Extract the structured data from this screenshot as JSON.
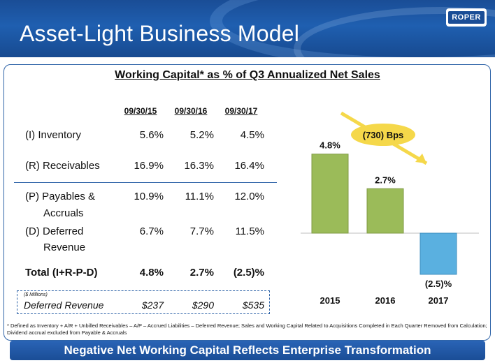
{
  "header": {
    "title": "Asset-Light Business Model",
    "logo_text": "ROPER"
  },
  "table": {
    "title": "Working Capital* as % of Q3 Annualized Net Sales",
    "columns": [
      "09/30/15",
      "09/30/16",
      "09/30/17"
    ],
    "rows": [
      {
        "label": [
          "(I)  Inventory"
        ],
        "values": [
          "5.6%",
          "5.2%",
          "4.5%"
        ]
      },
      {
        "label": [
          "(R) Receivables"
        ],
        "values": [
          "16.9%",
          "16.3%",
          "16.4%"
        ]
      },
      {
        "label": [
          "(P) Payables &",
          "Accruals"
        ],
        "values": [
          "10.9%",
          "11.1%",
          "12.0%"
        ]
      },
      {
        "label": [
          "(D) Deferred",
          "Revenue"
        ],
        "values": [
          "6.7%",
          "7.7%",
          "11.5%"
        ]
      },
      {
        "label": [
          "Total (I+R-P-D)"
        ],
        "values": [
          "4.8%",
          "2.7%",
          "(2.5)%"
        ]
      }
    ],
    "deferred": {
      "unit_note": "($ Millions)",
      "label": "Deferred Revenue",
      "values": [
        "$237",
        "$290",
        "$535"
      ]
    }
  },
  "chart_data": {
    "type": "bar",
    "categories": [
      "2015",
      "2016",
      "2017"
    ],
    "values": [
      4.8,
      2.7,
      -2.5
    ],
    "data_labels": [
      "4.8%",
      "2.7%",
      "(2.5)%"
    ],
    "annotation": "(730) Bps",
    "colors": {
      "positive": "#9bbb59",
      "negative": "#5ab0e0",
      "arrow": "#f5d84a"
    }
  },
  "footnote": "* Defined as Inventory + A/R + Unbilled Receivables – A/P – Accrued Liabilities – Deferred Revenue; Sales and Working Capital Related to Acquisitions Completed in Each Quarter Removed from Calculation; Dividend  accrual excluded from Payable & Accruals",
  "footer": "Negative Net Working Capital Reflects Enterprise Transformation"
}
